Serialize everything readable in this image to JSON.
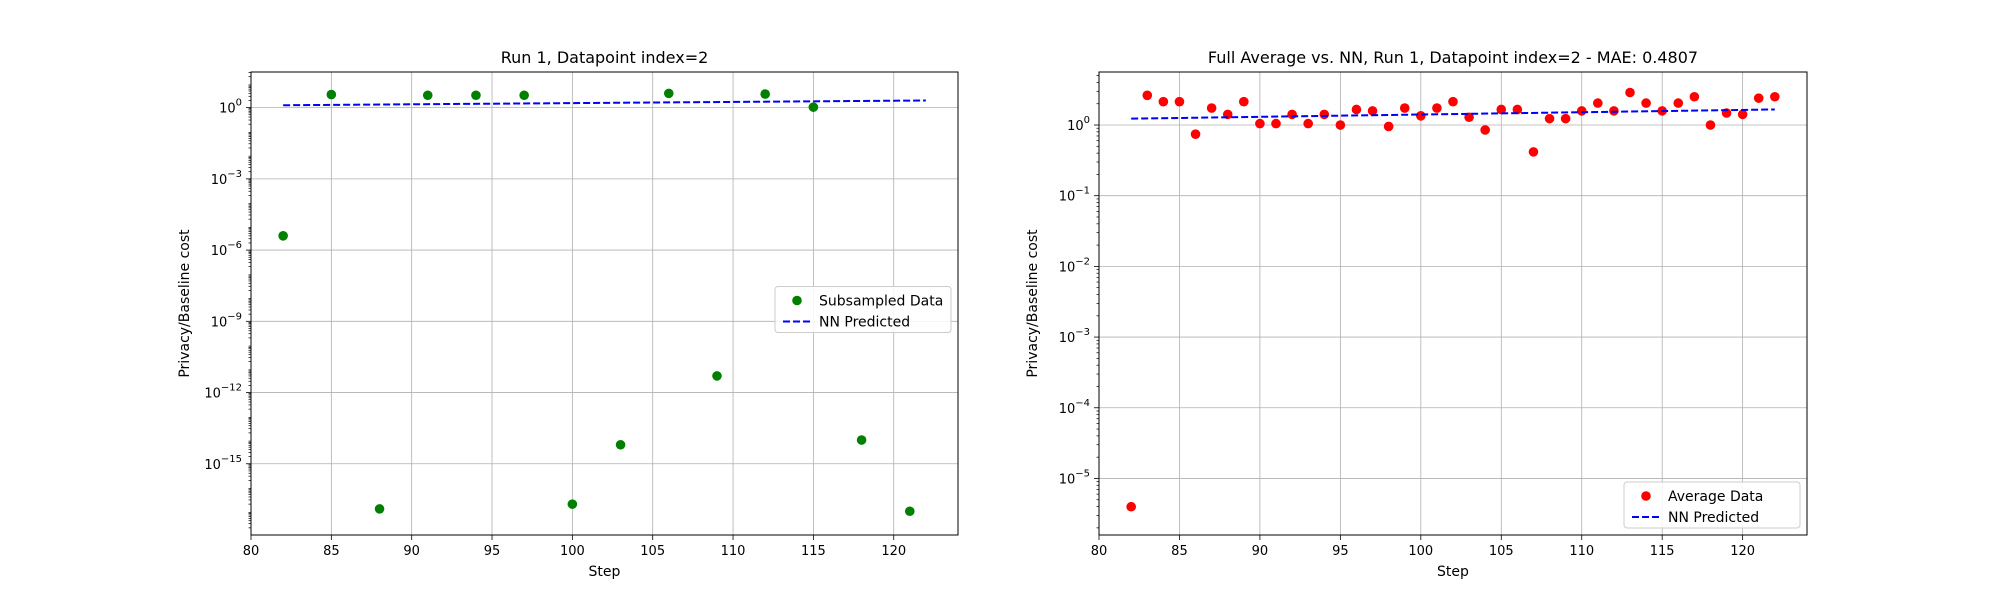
{
  "chart_data": [
    {
      "type": "scatter",
      "title": "Run 1, Datapoint index=2",
      "xlabel": "Step",
      "ylabel": "Privacy/Baseline cost",
      "xlim": [
        80,
        124
      ],
      "ylim": [
        -18,
        1.5
      ],
      "yscale": "log",
      "grid": true,
      "legend_position": "center-right",
      "x_ticks": [
        "80",
        "85",
        "90",
        "95",
        "100",
        "105",
        "110",
        "115",
        "120"
      ],
      "y_ticks": [
        {
          "base": "10",
          "exp": "0",
          "log": 0
        },
        {
          "base": "10",
          "exp": "−3",
          "log": -3
        },
        {
          "base": "10",
          "exp": "−6",
          "log": -6
        },
        {
          "base": "10",
          "exp": "−9",
          "log": -9
        },
        {
          "base": "10",
          "exp": "−12",
          "log": -12
        },
        {
          "base": "10",
          "exp": "−15",
          "log": -15
        }
      ],
      "series": [
        {
          "name": "Subsampled Data",
          "kind": "scatter",
          "color": "#008000",
          "x": [
            82,
            85,
            88,
            91,
            94,
            97,
            100,
            103,
            106,
            109,
            112,
            115,
            118,
            121
          ],
          "y_log10": [
            -5.4,
            0.55,
            -16.9,
            0.52,
            0.52,
            0.52,
            -16.7,
            -14.2,
            0.6,
            -11.3,
            0.57,
            0.02,
            -14.0,
            -17.0
          ]
        },
        {
          "name": "NN Predicted",
          "kind": "dashed-line",
          "color": "#0000ff",
          "x": [
            82,
            122
          ],
          "y_log10": [
            0.1,
            0.3
          ]
        }
      ]
    },
    {
      "type": "scatter",
      "title": "Full Average vs. NN, Run 1, Datapoint index=2 - MAE: 0.4807",
      "xlabel": "Step",
      "ylabel": "Privacy/Baseline cost",
      "xlim": [
        80,
        124
      ],
      "ylim": [
        -5.8,
        0.75
      ],
      "yscale": "log",
      "grid": true,
      "legend_position": "bottom-right",
      "x_ticks": [
        "80",
        "85",
        "90",
        "95",
        "100",
        "105",
        "110",
        "115",
        "120"
      ],
      "y_ticks": [
        {
          "base": "10",
          "exp": "0",
          "log": 0
        },
        {
          "base": "10",
          "exp": "−1",
          "log": -1
        },
        {
          "base": "10",
          "exp": "−2",
          "log": -2
        },
        {
          "base": "10",
          "exp": "−3",
          "log": -3
        },
        {
          "base": "10",
          "exp": "−4",
          "log": -4
        },
        {
          "base": "10",
          "exp": "−5",
          "log": -5
        }
      ],
      "series": [
        {
          "name": "Average Data",
          "kind": "scatter",
          "color": "#ff0000",
          "x": [
            82,
            83,
            84,
            85,
            86,
            87,
            88,
            89,
            90,
            91,
            92,
            93,
            94,
            95,
            96,
            97,
            98,
            99,
            100,
            101,
            102,
            103,
            104,
            105,
            106,
            107,
            108,
            109,
            110,
            111,
            112,
            113,
            114,
            115,
            116,
            117,
            118,
            119,
            120,
            121,
            122
          ],
          "y_log10": [
            -5.4,
            0.42,
            0.33,
            0.33,
            -0.13,
            0.24,
            0.15,
            0.33,
            0.02,
            0.02,
            0.15,
            0.02,
            0.15,
            0.0,
            0.22,
            0.2,
            -0.02,
            0.24,
            0.13,
            0.24,
            0.33,
            0.11,
            -0.07,
            0.22,
            0.22,
            -0.38,
            0.09,
            0.09,
            0.2,
            0.31,
            0.2,
            0.46,
            0.31,
            0.2,
            0.31,
            0.4,
            0.0,
            0.17,
            0.15,
            0.38,
            0.4
          ]
        },
        {
          "name": "NN Predicted",
          "kind": "dashed-line",
          "color": "#0000ff",
          "x": [
            82,
            122
          ],
          "y_log10": [
            0.09,
            0.22
          ]
        }
      ]
    }
  ]
}
